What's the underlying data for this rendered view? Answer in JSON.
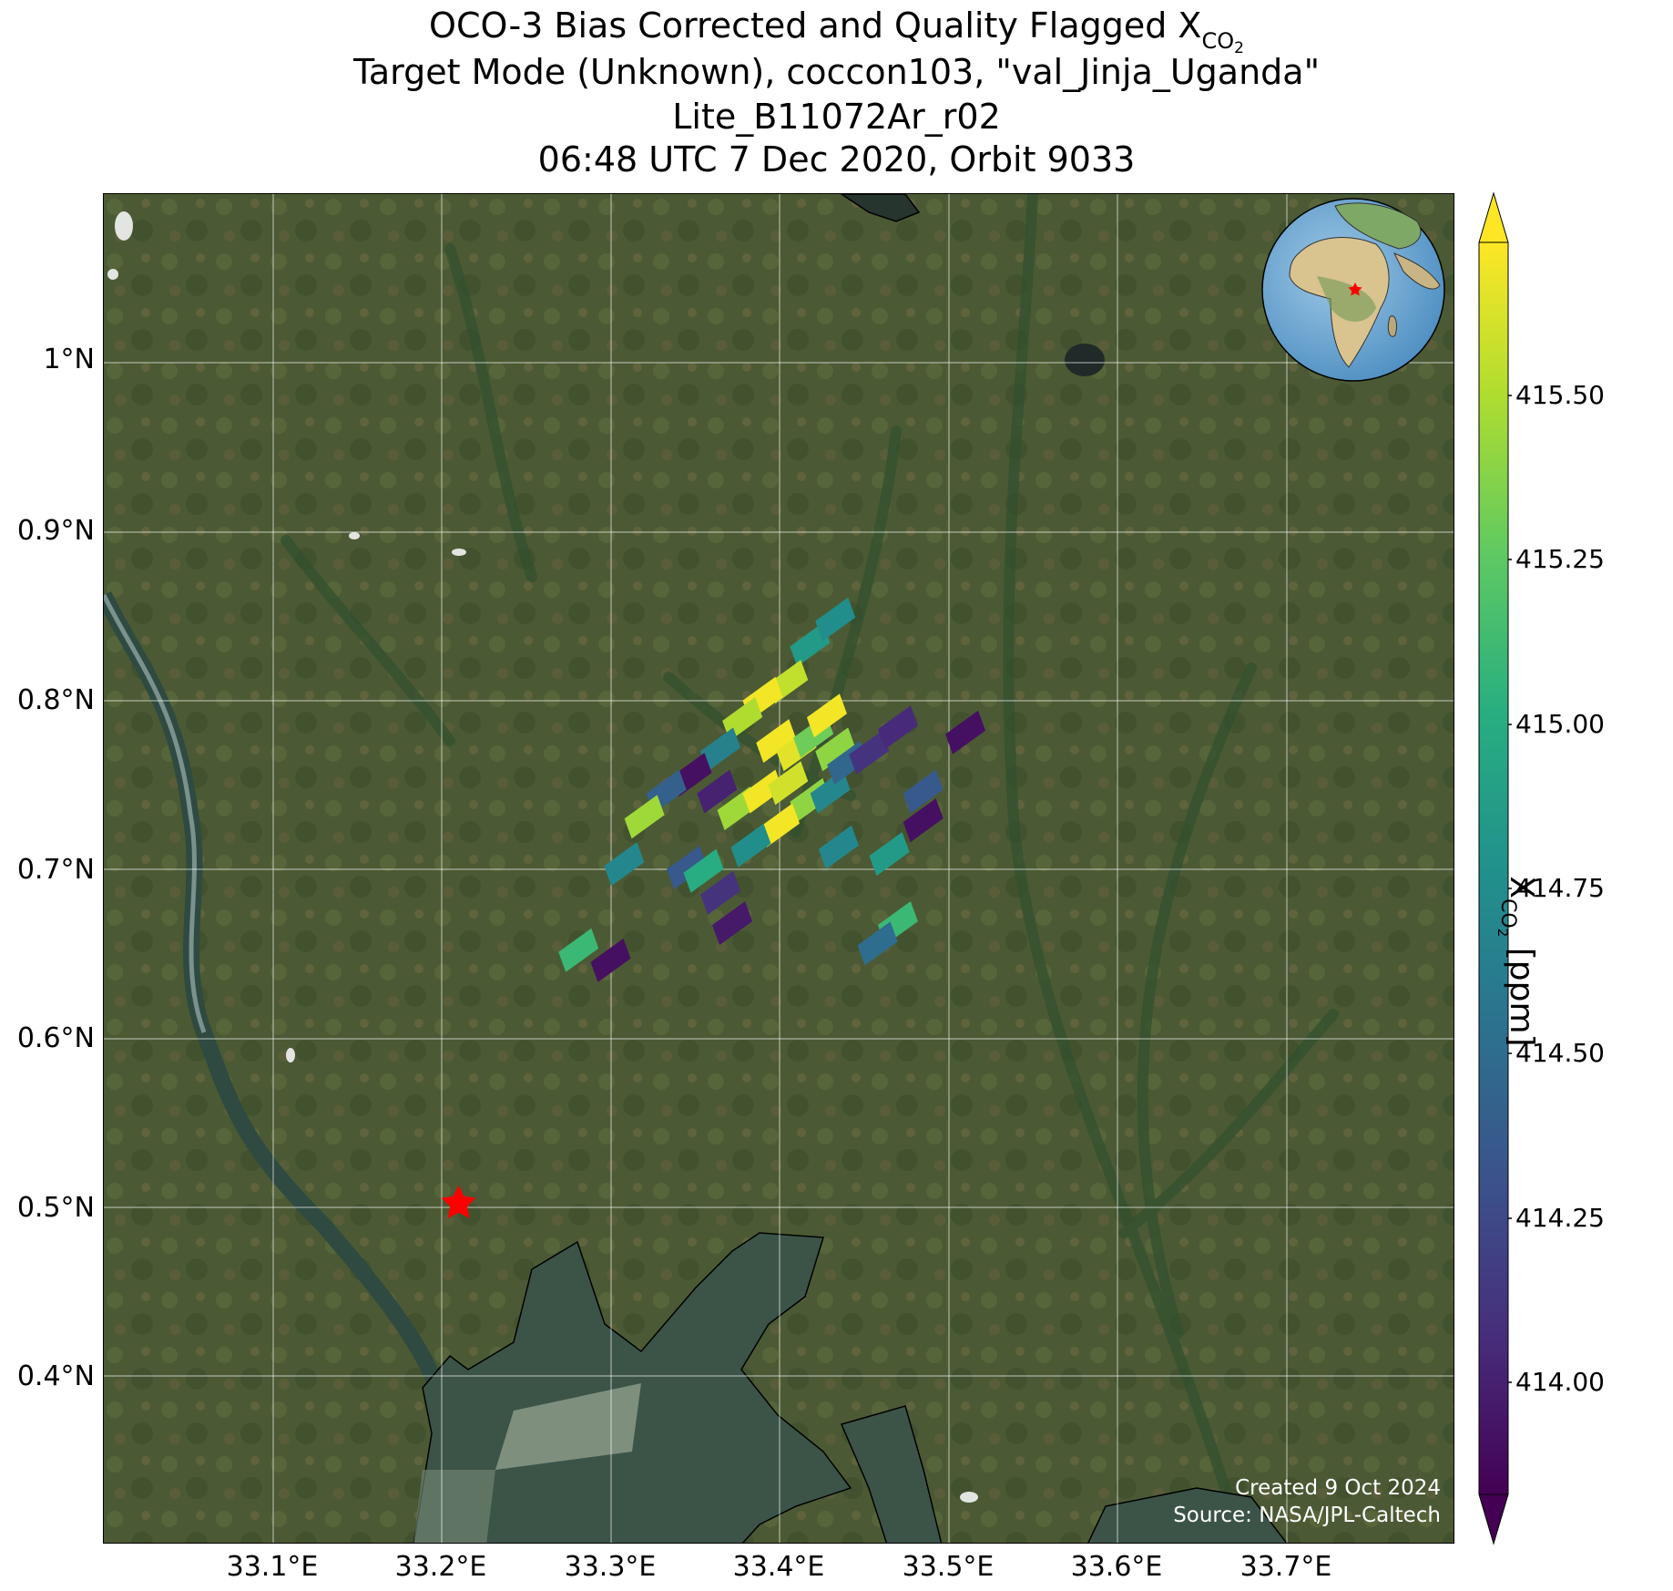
{
  "title": {
    "line1_prefix": "OCO-3 Bias Corrected and Quality Flagged X",
    "line1_sub": "CO",
    "line1_subsub": "2",
    "line2": "Target Mode (Unknown), coccon103, \"val_Jinja_Uganda\"",
    "line3": "Lite_B11072Ar_r02",
    "line4": "06:48 UTC 7 Dec 2020, Orbit 9033"
  },
  "map": {
    "lon_range": [
      33.0,
      33.8
    ],
    "lat_range": [
      0.3,
      1.1
    ],
    "x_ticks": [
      "33.1°E",
      "33.2°E",
      "33.3°E",
      "33.4°E",
      "33.5°E",
      "33.6°E",
      "33.7°E"
    ],
    "y_ticks": [
      "1°N",
      "0.9°N",
      "0.8°N",
      "0.7°N",
      "0.6°N",
      "0.5°N",
      "0.4°N"
    ],
    "target_marker": {
      "lon": 33.21,
      "lat": 0.502,
      "color": "#ff0000",
      "icon": "star-icon"
    },
    "credit_line1": "Created 9 Oct 2024",
    "credit_line2": "Source: NASA/JPL-Caltech",
    "inset_globe": {
      "icon": "globe-icon",
      "marker": "star-icon",
      "marker_color": "#ff0000"
    }
  },
  "colorbar": {
    "colormap": "viridis",
    "range": [
      413.82,
      415.73
    ],
    "ticks": [
      "415.50",
      "415.25",
      "415.00",
      "414.75",
      "414.50",
      "414.25",
      "414.00"
    ],
    "label_prefix": "X",
    "label_sub": "CO",
    "label_subsub": "2",
    "label_suffix": " [ppm]"
  },
  "chart_data": {
    "type": "scatter",
    "variable": "XCO2",
    "units": "ppm",
    "soundings": [
      {
        "lon": 33.418,
        "lat": 0.832,
        "value": 414.85
      },
      {
        "lon": 33.433,
        "lat": 0.847,
        "value": 414.75
      },
      {
        "lon": 33.405,
        "lat": 0.81,
        "value": 415.55
      },
      {
        "lon": 33.39,
        "lat": 0.8,
        "value": 415.7
      },
      {
        "lon": 33.378,
        "lat": 0.788,
        "value": 415.5
      },
      {
        "lon": 33.398,
        "lat": 0.775,
        "value": 415.7
      },
      {
        "lon": 33.41,
        "lat": 0.77,
        "value": 415.65
      },
      {
        "lon": 33.42,
        "lat": 0.778,
        "value": 415.3
      },
      {
        "lon": 33.433,
        "lat": 0.77,
        "value": 415.4
      },
      {
        "lon": 33.428,
        "lat": 0.79,
        "value": 415.7
      },
      {
        "lon": 33.365,
        "lat": 0.77,
        "value": 414.65
      },
      {
        "lon": 33.348,
        "lat": 0.755,
        "value": 413.9
      },
      {
        "lon": 33.363,
        "lat": 0.745,
        "value": 414.0
      },
      {
        "lon": 33.333,
        "lat": 0.745,
        "value": 414.4
      },
      {
        "lon": 33.32,
        "lat": 0.73,
        "value": 415.45
      },
      {
        "lon": 33.375,
        "lat": 0.735,
        "value": 415.45
      },
      {
        "lon": 33.39,
        "lat": 0.745,
        "value": 415.7
      },
      {
        "lon": 33.405,
        "lat": 0.75,
        "value": 415.6
      },
      {
        "lon": 33.418,
        "lat": 0.74,
        "value": 415.4
      },
      {
        "lon": 33.4,
        "lat": 0.725,
        "value": 415.7
      },
      {
        "lon": 33.383,
        "lat": 0.713,
        "value": 414.75
      },
      {
        "lon": 33.43,
        "lat": 0.745,
        "value": 414.7
      },
      {
        "lon": 33.44,
        "lat": 0.762,
        "value": 414.45
      },
      {
        "lon": 33.453,
        "lat": 0.768,
        "value": 414.1
      },
      {
        "lon": 33.47,
        "lat": 0.783,
        "value": 414.05
      },
      {
        "lon": 33.51,
        "lat": 0.78,
        "value": 413.9
      },
      {
        "lon": 33.485,
        "lat": 0.745,
        "value": 414.35
      },
      {
        "lon": 33.485,
        "lat": 0.728,
        "value": 413.9
      },
      {
        "lon": 33.435,
        "lat": 0.712,
        "value": 414.7
      },
      {
        "lon": 33.465,
        "lat": 0.708,
        "value": 414.85
      },
      {
        "lon": 33.308,
        "lat": 0.702,
        "value": 414.7
      },
      {
        "lon": 33.345,
        "lat": 0.7,
        "value": 414.35
      },
      {
        "lon": 33.355,
        "lat": 0.698,
        "value": 415.0
      },
      {
        "lon": 33.365,
        "lat": 0.685,
        "value": 414.1
      },
      {
        "lon": 33.372,
        "lat": 0.667,
        "value": 413.95
      },
      {
        "lon": 33.47,
        "lat": 0.667,
        "value": 415.1
      },
      {
        "lon": 33.458,
        "lat": 0.655,
        "value": 414.5
      },
      {
        "lon": 33.281,
        "lat": 0.651,
        "value": 415.1
      },
      {
        "lon": 33.3,
        "lat": 0.645,
        "value": 413.9
      }
    ]
  }
}
